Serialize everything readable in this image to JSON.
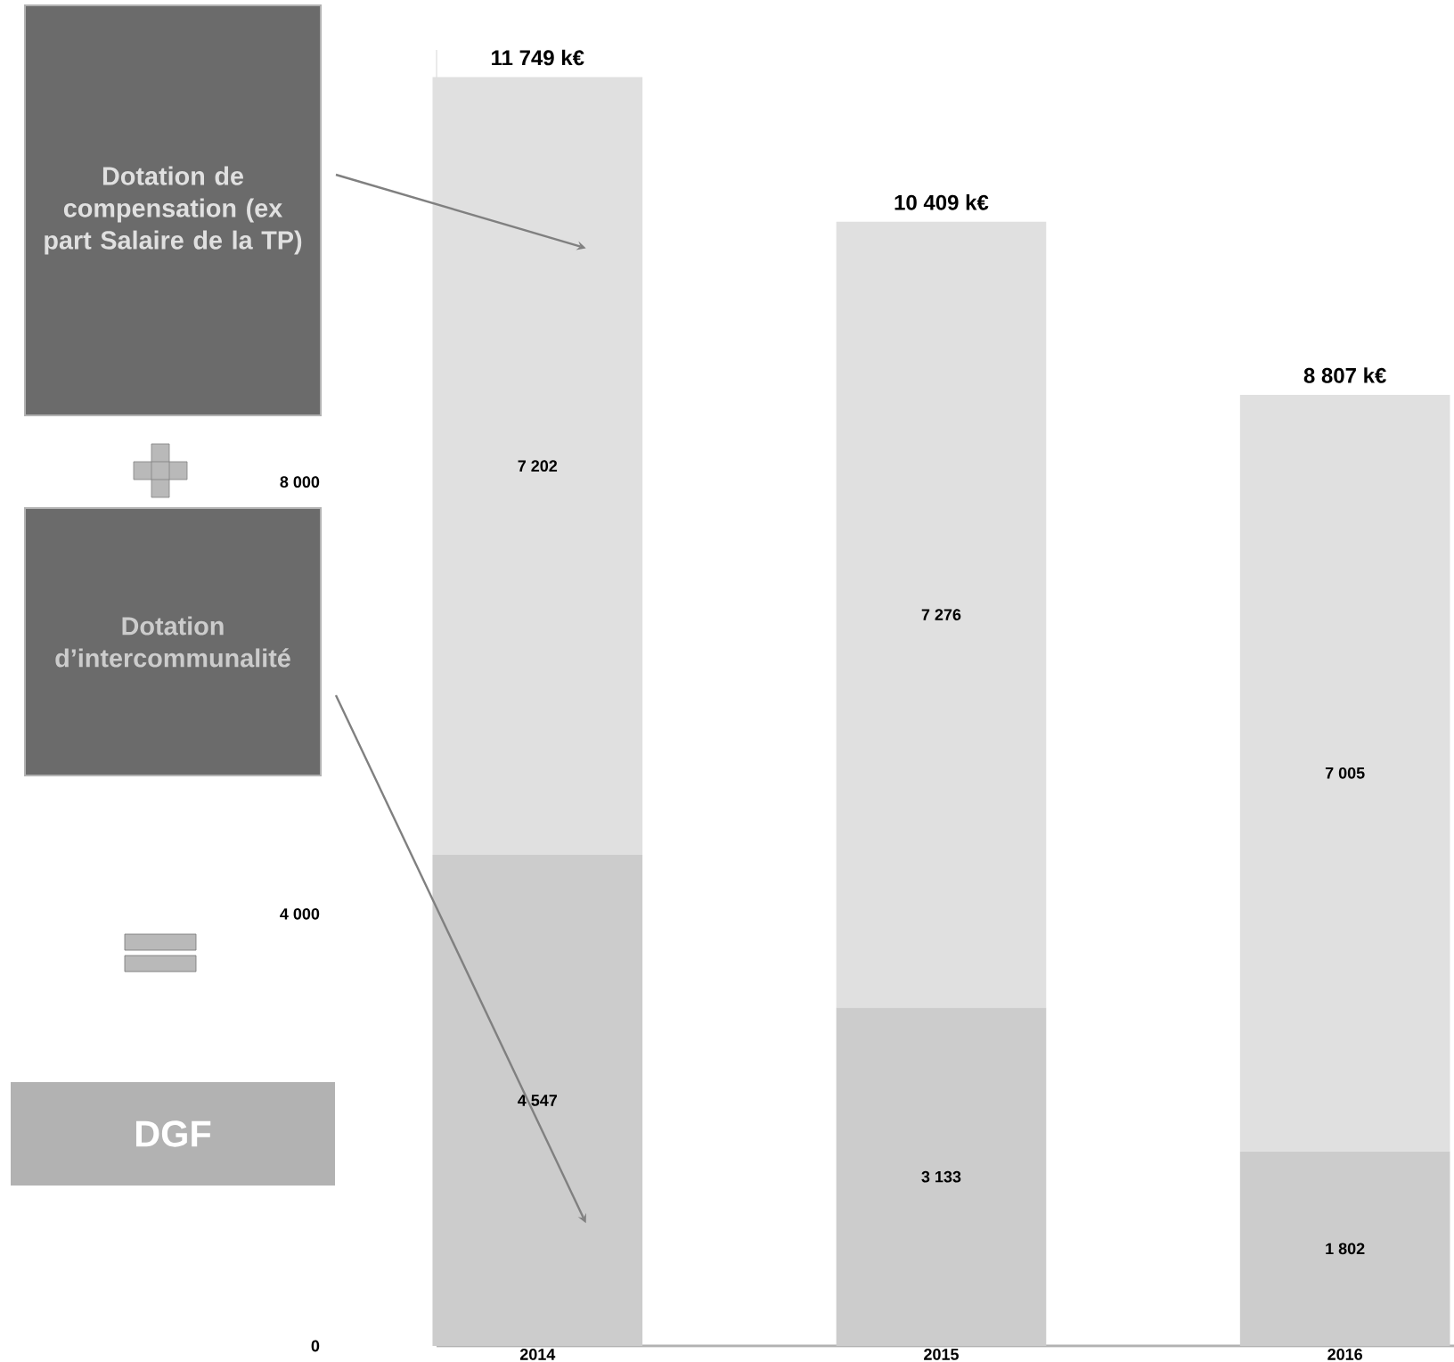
{
  "chart_data": {
    "type": "bar",
    "stacked": true,
    "categories": [
      "2014",
      "2015",
      "2016"
    ],
    "series": [
      {
        "name": "Dotation d’intercommunalité",
        "color": "#cccccc",
        "values": [
          4547,
          3133,
          1802
        ],
        "value_labels": [
          "4 547",
          "3 133",
          "1 802"
        ]
      },
      {
        "name": "Dotation de compensation (ex part Salaire de la TP)",
        "color": "#e0e0e0",
        "values": [
          7202,
          7276,
          7005
        ],
        "value_labels": [
          "7 202",
          "7 276",
          "7 005"
        ]
      }
    ],
    "totals": [
      "11 749 k€",
      "10 409 k€",
      "8 807 k€"
    ],
    "ylim": [
      0,
      12000
    ],
    "yticks": [
      0,
      {
        "value": 4000,
        "label": "4 000"
      },
      {
        "value": 8000,
        "label": "8 000"
      }
    ],
    "legend": "left",
    "annotations": [
      "DGF"
    ]
  }
}
